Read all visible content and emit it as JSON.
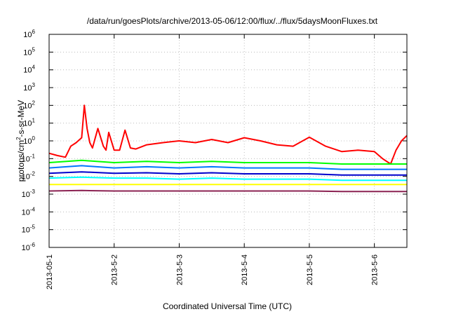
{
  "chart_data": {
    "type": "line",
    "title": "/data/run/goesPlots/archive/2013-05-06/12:00/flux/../flux/5daysMoonFluxes.txt",
    "xlabel": "Coordinated Universal Time (UTC)",
    "ylabel": "protons/cm²-s-sr-MeV",
    "ylabel_parts": {
      "main": "protons/cm",
      "sup": "2",
      "rest": "-s-sr-MeV"
    },
    "y_scale": "log",
    "ylim": [
      1e-06,
      1000000
    ],
    "y_ticks": [
      {
        "exp": -6,
        "base": "10",
        "sup": "-6"
      },
      {
        "exp": -5,
        "base": "10",
        "sup": "-5"
      },
      {
        "exp": -4,
        "base": "10",
        "sup": "-4"
      },
      {
        "exp": -3,
        "base": "10",
        "sup": "-3"
      },
      {
        "exp": -2,
        "base": "10",
        "sup": "-2"
      },
      {
        "exp": -1,
        "base": "10",
        "sup": "-1"
      },
      {
        "exp": 0,
        "base": "10",
        "sup": "0"
      },
      {
        "exp": 1,
        "base": "10",
        "sup": "1"
      },
      {
        "exp": 2,
        "base": "10",
        "sup": "2"
      },
      {
        "exp": 3,
        "base": "10",
        "sup": "3"
      },
      {
        "exp": 4,
        "base": "10",
        "sup": "4"
      },
      {
        "exp": 5,
        "base": "10",
        "sup": "5"
      },
      {
        "exp": 6,
        "base": "10",
        "sup": "6"
      }
    ],
    "x_ticks": [
      "2013-05-1",
      "2013-5-2",
      "2013-5-3",
      "2013-5-4",
      "2013-5-5",
      "2013-5-6"
    ],
    "xlim": [
      "2013-05-01 00:00",
      "2013-05-06 12:00"
    ],
    "grid": true,
    "legend": "none",
    "series": [
      {
        "color": "#ff0000",
        "x": [
          "2013-05-01 00:00",
          "2013-05-01 03:00",
          "2013-05-01 06:00",
          "2013-05-01 08:00",
          "2013-05-01 10:00",
          "2013-05-01 12:00",
          "2013-05-01 13:00",
          "2013-05-01 14:00",
          "2013-05-01 15:00",
          "2013-05-01 16:00",
          "2013-05-01 18:00",
          "2013-05-01 20:00",
          "2013-05-01 21:00",
          "2013-05-01 22:00",
          "2013-05-02 00:00",
          "2013-05-02 02:00",
          "2013-05-02 04:00",
          "2013-05-02 06:00",
          "2013-05-02 08:00",
          "2013-05-02 12:00",
          "2013-05-02 18:00",
          "2013-05-03 00:00",
          "2013-05-03 06:00",
          "2013-05-03 12:00",
          "2013-05-03 18:00",
          "2013-05-04 00:00",
          "2013-05-04 06:00",
          "2013-05-04 12:00",
          "2013-05-04 18:00",
          "2013-05-05 00:00",
          "2013-05-05 06:00",
          "2013-05-05 12:00",
          "2013-05-05 18:00",
          "2013-05-06 00:00",
          "2013-05-06 03:00",
          "2013-05-06 06:00",
          "2013-05-06 08:00",
          "2013-05-06 10:00",
          "2013-05-06 12:00"
        ],
        "values": [
          0.2,
          0.15,
          0.12,
          0.5,
          0.8,
          1.5,
          100,
          5,
          0.8,
          0.4,
          5,
          0.5,
          0.3,
          3,
          0.3,
          0.3,
          4,
          0.4,
          0.35,
          0.6,
          0.8,
          1,
          0.8,
          1.2,
          0.8,
          1.5,
          1,
          0.6,
          0.5,
          1.6,
          0.5,
          0.25,
          0.3,
          0.25,
          0.1,
          0.05,
          0.3,
          1,
          2
        ]
      },
      {
        "color": "#00ff00",
        "x": [
          "2013-05-01 00:00",
          "2013-05-01 12:00",
          "2013-05-02 00:00",
          "2013-05-02 12:00",
          "2013-05-03 00:00",
          "2013-05-03 12:00",
          "2013-05-04 00:00",
          "2013-05-04 12:00",
          "2013-05-05 00:00",
          "2013-05-05 12:00",
          "2013-05-06 00:00",
          "2013-05-06 12:00"
        ],
        "values": [
          0.06,
          0.08,
          0.06,
          0.07,
          0.06,
          0.07,
          0.06,
          0.06,
          0.06,
          0.05,
          0.05,
          0.05
        ]
      },
      {
        "color": "#00ffff",
        "x": [
          "2013-05-01 00:00",
          "2013-05-01 12:00",
          "2013-05-02 00:00",
          "2013-05-02 12:00",
          "2013-05-03 00:00",
          "2013-05-03 12:00",
          "2013-05-04 00:00",
          "2013-05-04 12:00",
          "2013-05-05 00:00",
          "2013-05-05 12:00",
          "2013-05-06 00:00",
          "2013-05-06 12:00"
        ],
        "values": [
          0.008,
          0.009,
          0.008,
          0.008,
          0.007,
          0.008,
          0.007,
          0.007,
          0.007,
          0.006,
          0.006,
          0.006
        ]
      },
      {
        "color": "#0077ff",
        "x": [
          "2013-05-01 00:00",
          "2013-05-01 12:00",
          "2013-05-02 00:00",
          "2013-05-02 12:00",
          "2013-05-03 00:00",
          "2013-05-03 12:00",
          "2013-05-04 00:00",
          "2013-05-04 12:00",
          "2013-05-05 00:00",
          "2013-05-05 12:00",
          "2013-05-06 00:00",
          "2013-05-06 12:00"
        ],
        "values": [
          0.03,
          0.04,
          0.03,
          0.035,
          0.03,
          0.035,
          0.03,
          0.03,
          0.03,
          0.025,
          0.025,
          0.025
        ]
      },
      {
        "color": "#0000cc",
        "x": [
          "2013-05-01 00:00",
          "2013-05-01 12:00",
          "2013-05-02 00:00",
          "2013-05-02 12:00",
          "2013-05-03 00:00",
          "2013-05-03 12:00",
          "2013-05-04 00:00",
          "2013-05-04 12:00",
          "2013-05-05 00:00",
          "2013-05-05 12:00",
          "2013-05-06 00:00",
          "2013-05-06 12:00"
        ],
        "values": [
          0.015,
          0.018,
          0.015,
          0.016,
          0.014,
          0.016,
          0.014,
          0.014,
          0.014,
          0.012,
          0.012,
          0.012
        ]
      },
      {
        "color": "#ffff00",
        "x": [
          "2013-05-01 00:00",
          "2013-05-01 12:00",
          "2013-05-02 00:00",
          "2013-05-02 12:00",
          "2013-05-03 00:00",
          "2013-05-03 12:00",
          "2013-05-04 00:00",
          "2013-05-04 12:00",
          "2013-05-05 00:00",
          "2013-05-05 12:00",
          "2013-05-06 00:00",
          "2013-05-06 12:00"
        ],
        "values": [
          0.0035,
          0.0035,
          0.0035,
          0.0035,
          0.0035,
          0.0035,
          0.0035,
          0.0035,
          0.0035,
          0.0035,
          0.0035,
          0.0035
        ]
      },
      {
        "color": "#8b2252",
        "x": [
          "2013-05-01 00:00",
          "2013-05-01 12:00",
          "2013-05-02 00:00",
          "2013-05-02 12:00",
          "2013-05-03 00:00",
          "2013-05-03 12:00",
          "2013-05-04 00:00",
          "2013-05-04 12:00",
          "2013-05-05 00:00",
          "2013-05-05 12:00",
          "2013-05-06 00:00",
          "2013-05-06 12:00"
        ],
        "values": [
          0.0015,
          0.0016,
          0.0015,
          0.0015,
          0.0015,
          0.0015,
          0.0015,
          0.0015,
          0.0015,
          0.0014,
          0.0014,
          0.0014
        ]
      }
    ]
  }
}
